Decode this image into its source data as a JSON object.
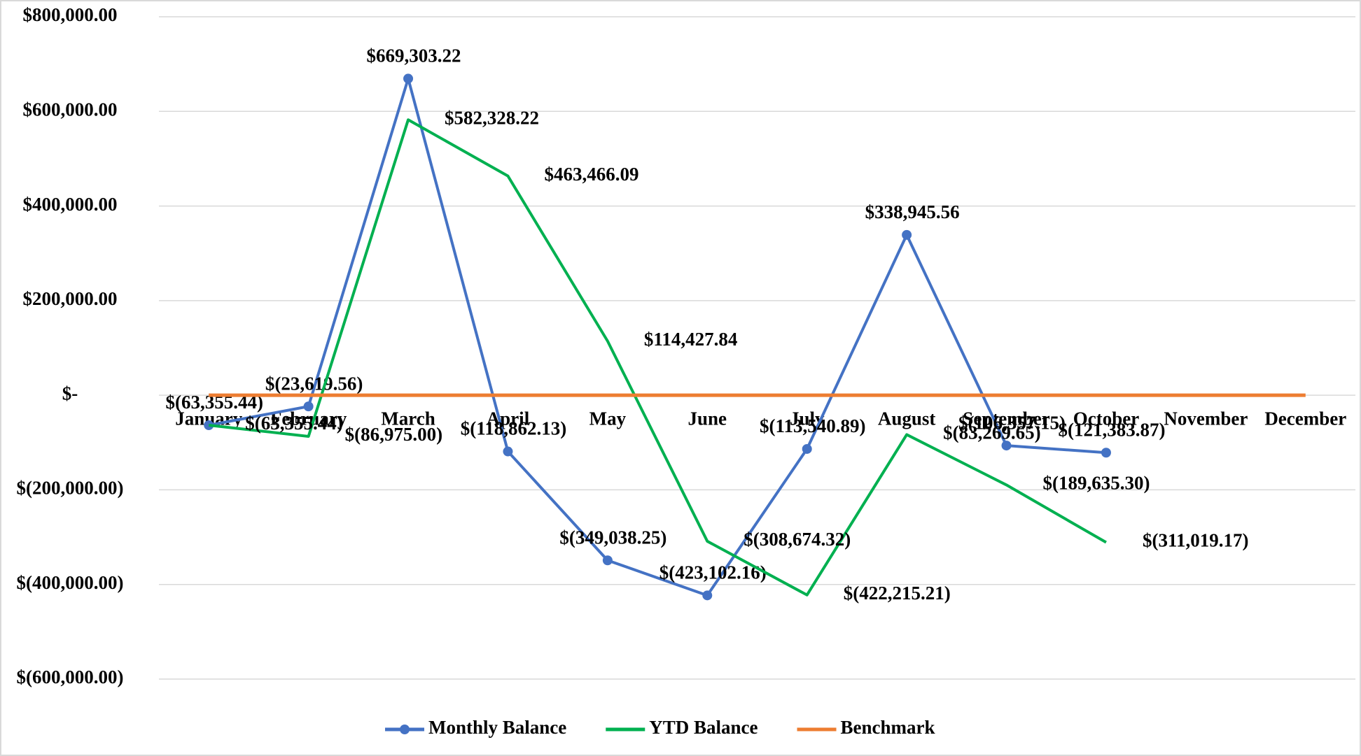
{
  "chart_data": {
    "type": "line",
    "categories": [
      "January",
      "February",
      "March",
      "April",
      "May",
      "June",
      "July",
      "August",
      "September",
      "October",
      "November",
      "December"
    ],
    "series": [
      {
        "name": "Monthly Balance",
        "color": "#4472c4",
        "marker": true,
        "values": [
          -63355.44,
          -23619.56,
          669303.22,
          -118862.13,
          -349038.25,
          -423102.16,
          -113540.89,
          338945.56,
          -106357.15,
          -121383.87,
          null,
          null
        ],
        "value_labels": [
          "$(63,355.44)",
          "$(23,619.56)",
          "$669,303.22",
          "$(118,862.13)",
          "$(349,038.25)",
          "$(423,102.16)",
          "$(113,540.89)",
          "$338,945.56",
          "$(106,357.15)",
          "$(121,383.87)",
          null,
          null
        ]
      },
      {
        "name": "YTD Balance",
        "color": "#00b050",
        "marker": false,
        "values": [
          -63355.44,
          -86975.0,
          582328.22,
          463466.09,
          114427.84,
          -308674.32,
          -422215.21,
          -83269.65,
          -189635.3,
          -311019.17,
          null,
          null
        ],
        "value_labels": [
          "$(63,355.44)",
          "$(86,975.00)",
          "$582,328.22",
          "$463,466.09",
          "$114,427.84",
          "$(308,674.32)",
          "$(422,215.21)",
          "$(83,269.65)",
          "$(189,635.30)",
          "$(311,019.17)",
          null,
          null
        ]
      },
      {
        "name": "Benchmark",
        "color": "#ed7d31",
        "marker": false,
        "values": [
          0,
          0,
          0,
          0,
          0,
          0,
          0,
          0,
          0,
          0,
          0,
          0
        ]
      }
    ],
    "ylim": [
      -600000,
      800000
    ],
    "yticks": [
      {
        "value": -600000,
        "label": "$(600,000.00)"
      },
      {
        "value": -400000,
        "label": "$(400,000.00)"
      },
      {
        "value": -200000,
        "label": "$(200,000.00)"
      },
      {
        "value": 0,
        "label": "$-"
      },
      {
        "value": 200000,
        "label": "$200,000.00"
      },
      {
        "value": 400000,
        "label": "$400,000.00"
      },
      {
        "value": 600000,
        "label": "$600,000.00"
      },
      {
        "value": 800000,
        "label": "$800,000.00"
      }
    ],
    "grid": true,
    "legend": "bottom"
  }
}
